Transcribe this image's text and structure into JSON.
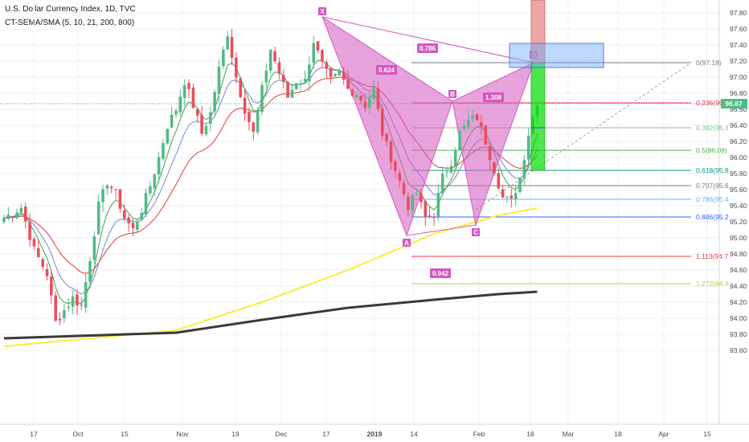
{
  "header": {
    "title": "U.S. Dollar Currency Index, 1D, TVC",
    "indicator": "CT-SEMA/SMA (5, 10, 21, 200, 800)"
  },
  "chart_data": {
    "type": "candlestick",
    "y_axis": {
      "range": [
        93.5,
        97.95
      ],
      "ticks": [
        "97.80",
        "97.60",
        "97.40",
        "97.20",
        "97.00",
        "96.80",
        "96.60",
        "96.40",
        "96.20",
        "96.00",
        "95.80",
        "95.60",
        "95.40",
        "95.20",
        "95.00",
        "94.80",
        "94.60",
        "94.40",
        "94.20",
        "94.00",
        "93.80",
        "93.60"
      ],
      "last_price": "96.67"
    },
    "x_axis": {
      "ticks": [
        "17",
        "Oct",
        "15",
        "Nov",
        "19",
        "Dec",
        "17",
        "2019",
        "14",
        "Feb",
        "18",
        "Mar",
        "18",
        "Apr",
        "15"
      ]
    },
    "colors": {
      "up": "#53b987",
      "down": "#eb4d5c",
      "fib_level": "#787b86",
      "pattern": "#d557c0",
      "target": "#00dd00",
      "stop": "#e88888",
      "zone": "#6fa8ff",
      "ma_yellow": "#ffeb3b",
      "ma_black": "#3a3a3a"
    },
    "harmonic_pattern": {
      "points": [
        {
          "label": "X",
          "x": "Nov 14",
          "y": 97.75
        },
        {
          "label": "A",
          "x": "Jan 10",
          "y": 95.03
        },
        {
          "label": "B",
          "x": "Jan 24",
          "y": 96.7
        },
        {
          "label": "C",
          "x": "Jan 31",
          "y": 95.16
        },
        {
          "label": "D",
          "x": "Feb 20",
          "y": 97.18
        }
      ],
      "ratios": [
        {
          "label": "0.786",
          "between": "X-D"
        },
        {
          "label": "0.624",
          "between": "X-B"
        },
        {
          "label": "1.308",
          "between": "B-D"
        },
        {
          "label": "0.942",
          "between": "A-C"
        }
      ]
    },
    "fib_levels": [
      {
        "label": "0(97.18)",
        "value": 97.18,
        "color": "#787b86"
      },
      {
        "label": "0.236(96.6",
        "value": 96.68,
        "color": "#f23645"
      },
      {
        "label": "0.382(96.3",
        "value": 96.37,
        "color": "#81c784"
      },
      {
        "label": "0.5(96.09)",
        "value": 96.09,
        "color": "#4caf50"
      },
      {
        "label": "0.618(95.8",
        "value": 95.84,
        "color": "#089981"
      },
      {
        "label": "0.707(95.6",
        "value": 95.65,
        "color": "#787b86"
      },
      {
        "label": "0.786(95.4",
        "value": 95.48,
        "color": "#64b5f6"
      },
      {
        "label": "0.886(95.2",
        "value": 95.26,
        "color": "#2962ff"
      },
      {
        "label": "1.113(94.7",
        "value": 94.77,
        "color": "#f23645"
      },
      {
        "label": "1.272(94.4",
        "value": 94.43,
        "color": "#b2d235"
      }
    ]
  }
}
